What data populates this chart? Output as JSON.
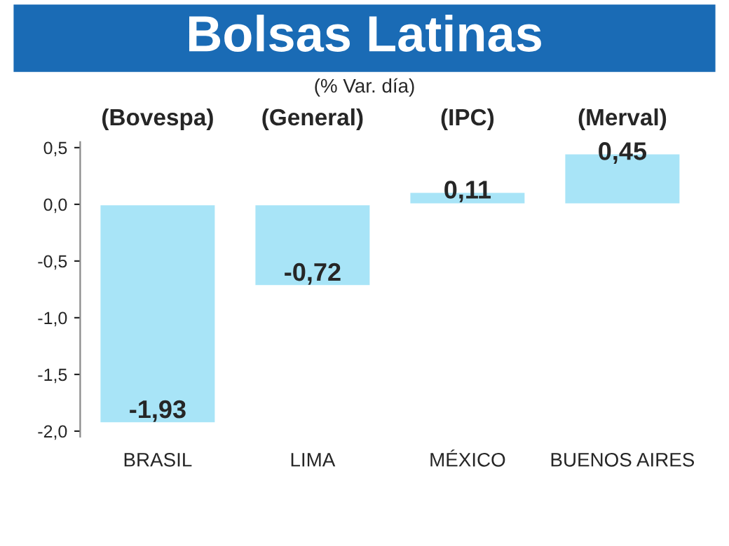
{
  "chart_data": {
    "type": "bar",
    "title": "Bolsas Latinas",
    "subtitle": "(% Var. día)",
    "categories": [
      "BRASIL",
      "LIMA",
      "MÉXICO",
      "BUENOS AIRES"
    ],
    "values": [
      -1.93,
      -0.72,
      0.11,
      0.45
    ],
    "value_labels": [
      "-1,93",
      "-0,72",
      "0,11",
      "0,45"
    ],
    "color": "#a8e4f7",
    "ylim": [
      -2.05,
      0.55
    ],
    "yticks": [
      {
        "value": -2.0,
        "label": "-2,0"
      },
      {
        "value": -1.5,
        "label": "-1,5"
      },
      {
        "value": -1.0,
        "label": "-1,0"
      },
      {
        "value": -0.5,
        "label": "-0,5"
      },
      {
        "value": 0.0,
        "label": "0,0"
      },
      {
        "value": 0.5,
        "label": "0,5"
      }
    ],
    "annotations": [
      "(Bovespa)",
      "(General)",
      "(IPC)",
      "(Merval)"
    ],
    "grid": false,
    "legend": false
  }
}
